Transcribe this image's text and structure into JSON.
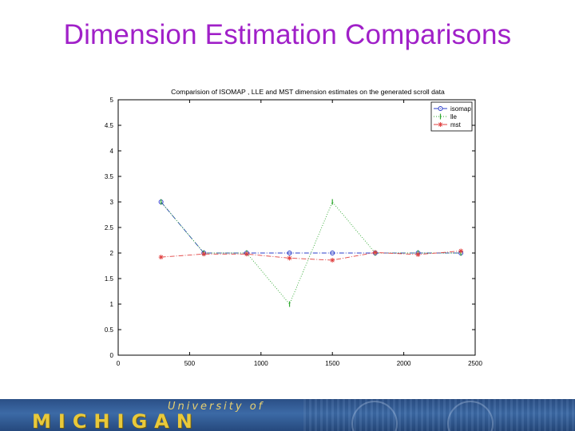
{
  "slide": {
    "title": "Dimension Estimation Comparisons"
  },
  "footer": {
    "wordmark_top": "University of",
    "wordmark_main": "MICHIGAN"
  },
  "chart_data": {
    "type": "line",
    "title": "Comparision of ISOMAP , LLE and MST dimension estimates on the generated scroll data",
    "xlabel": "",
    "ylabel": "",
    "xlim": [
      0,
      2500
    ],
    "ylim": [
      0,
      5
    ],
    "xticks": [
      0,
      500,
      1000,
      1500,
      2000,
      2500
    ],
    "yticks": [
      0,
      0.5,
      1,
      1.5,
      2,
      2.5,
      3,
      3.5,
      4,
      4.5,
      5
    ],
    "grid": false,
    "legend_position": "top-right",
    "x": [
      300,
      600,
      900,
      1200,
      1500,
      1800,
      2100,
      2400
    ],
    "series": [
      {
        "name": "isomap",
        "color": "#2a3cc8",
        "marker": "circle",
        "dash": "dashdot",
        "values": [
          3,
          2,
          2,
          2,
          2,
          2,
          2,
          2
        ]
      },
      {
        "name": "lle",
        "color": "#2fa82f",
        "marker": "vline",
        "dash": "dotted",
        "values": [
          3,
          2,
          2,
          1,
          3,
          2,
          2,
          2
        ]
      },
      {
        "name": "mst",
        "color": "#e04040",
        "marker": "star",
        "dash": "dashdot",
        "values": [
          1.92,
          1.98,
          1.98,
          1.9,
          1.86,
          2.01,
          1.97,
          2.04
        ]
      }
    ]
  }
}
